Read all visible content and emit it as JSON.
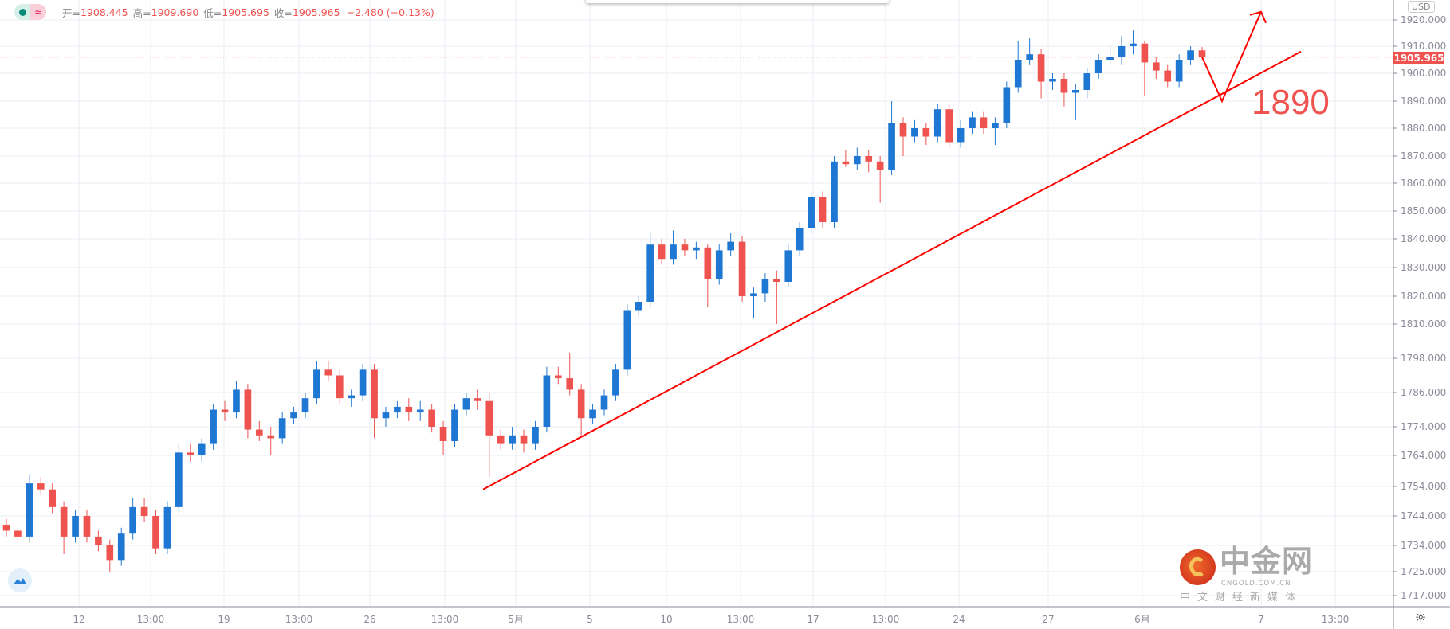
{
  "legend": {
    "open_label": "开=",
    "open": "1908.445",
    "high_label": "高=",
    "high": "1909.690",
    "low_label": "低=",
    "low": "1905.695",
    "close_label": "收=",
    "close": "1905.965",
    "change": "−2.480 (−0.13%)"
  },
  "currency": "USD",
  "last_price_label": "1905.965",
  "annotation": "1890",
  "watermark": {
    "name": "中金网",
    "domain": "CNGOLD.COM.CN",
    "tagline": "中文财经新媒体"
  },
  "colors": {
    "up": "#1f77d4",
    "down": "#ef5350",
    "annotation": "#ff0000",
    "grid": "#e8eef4"
  },
  "chart_data": {
    "type": "candlestick",
    "y_ticks": [
      "1920.000",
      "1910.000",
      "1900.000",
      "1890.000",
      "1880.000",
      "1870.000",
      "1860.000",
      "1850.000",
      "1840.000",
      "1830.000",
      "1820.000",
      "1810.000",
      "1798.000",
      "1786.000",
      "1774.000",
      "1764.000",
      "1754.000",
      "1744.000",
      "1734.000",
      "1725.000",
      "1717.000"
    ],
    "x_ticks": [
      "12",
      "13:00",
      "19",
      "13:00",
      "26",
      "13:00",
      "5月",
      "5",
      "10",
      "13:00",
      "17",
      "13:00",
      "24",
      "27",
      "6月",
      "7",
      "13:00"
    ],
    "last_price": 1905.965,
    "ohlc": [
      [
        1741,
        1743,
        1737,
        1739
      ],
      [
        1739,
        1741,
        1735,
        1737
      ],
      [
        1737,
        1758,
        1735,
        1755
      ],
      [
        1755,
        1757,
        1751,
        1753
      ],
      [
        1753,
        1755,
        1745,
        1747
      ],
      [
        1747,
        1749,
        1731,
        1737
      ],
      [
        1737,
        1746,
        1735,
        1744
      ],
      [
        1744,
        1746,
        1735,
        1737
      ],
      [
        1737,
        1739,
        1732,
        1734
      ],
      [
        1734,
        1736,
        1725,
        1729
      ],
      [
        1729,
        1740,
        1727,
        1738
      ],
      [
        1738,
        1750,
        1736,
        1747
      ],
      [
        1747,
        1750,
        1742,
        1744
      ],
      [
        1744,
        1746,
        1731,
        1733
      ],
      [
        1733,
        1749,
        1731,
        1747
      ],
      [
        1747,
        1768,
        1745,
        1765
      ],
      [
        1765,
        1768,
        1762,
        1764
      ],
      [
        1764,
        1770,
        1762,
        1768
      ],
      [
        1768,
        1782,
        1766,
        1780
      ],
      [
        1780,
        1783,
        1776,
        1779
      ],
      [
        1779,
        1790,
        1777,
        1787
      ],
      [
        1787,
        1789,
        1770,
        1773
      ],
      [
        1773,
        1776,
        1769,
        1771
      ],
      [
        1771,
        1774,
        1764,
        1770
      ],
      [
        1770,
        1779,
        1768,
        1777
      ],
      [
        1777,
        1781,
        1775,
        1779
      ],
      [
        1779,
        1786,
        1777,
        1784
      ],
      [
        1784,
        1797,
        1782,
        1794
      ],
      [
        1794,
        1797,
        1790,
        1792
      ],
      [
        1792,
        1794,
        1782,
        1784
      ],
      [
        1784,
        1787,
        1781,
        1785
      ],
      [
        1785,
        1796,
        1783,
        1794
      ],
      [
        1794,
        1796,
        1770,
        1777
      ],
      [
        1777,
        1781,
        1774,
        1779
      ],
      [
        1779,
        1783,
        1777,
        1781
      ],
      [
        1781,
        1784,
        1776,
        1779
      ],
      [
        1779,
        1783,
        1776,
        1780
      ],
      [
        1780,
        1782,
        1772,
        1774
      ],
      [
        1774,
        1776,
        1764,
        1769
      ],
      [
        1769,
        1782,
        1767,
        1780
      ],
      [
        1780,
        1786,
        1778,
        1784
      ],
      [
        1784,
        1787,
        1780,
        1783
      ],
      [
        1783,
        1786,
        1757,
        1771
      ],
      [
        1771,
        1773,
        1766,
        1768
      ],
      [
        1768,
        1774,
        1766,
        1771
      ],
      [
        1771,
        1773,
        1765,
        1768
      ],
      [
        1768,
        1776,
        1766,
        1774
      ],
      [
        1774,
        1795,
        1772,
        1792
      ],
      [
        1792,
        1795,
        1789,
        1791
      ],
      [
        1791,
        1800,
        1785,
        1787
      ],
      [
        1787,
        1789,
        1771,
        1777
      ],
      [
        1777,
        1782,
        1775,
        1780
      ],
      [
        1780,
        1787,
        1778,
        1785
      ],
      [
        1785,
        1796,
        1783,
        1794
      ],
      [
        1794,
        1817,
        1792,
        1815
      ],
      [
        1815,
        1820,
        1813,
        1818
      ],
      [
        1818,
        1842,
        1816,
        1838
      ],
      [
        1838,
        1840,
        1831,
        1833
      ],
      [
        1833,
        1843,
        1831,
        1838
      ],
      [
        1838,
        1840,
        1834,
        1836
      ],
      [
        1836,
        1839,
        1833,
        1837
      ],
      [
        1837,
        1838,
        1816,
        1826
      ],
      [
        1826,
        1838,
        1824,
        1836
      ],
      [
        1836,
        1842,
        1834,
        1839
      ],
      [
        1839,
        1841,
        1818,
        1820
      ],
      [
        1820,
        1823,
        1812,
        1821
      ],
      [
        1821,
        1828,
        1818,
        1826
      ],
      [
        1826,
        1829,
        1810,
        1825
      ],
      [
        1825,
        1838,
        1823,
        1836
      ],
      [
        1836,
        1846,
        1834,
        1844
      ],
      [
        1844,
        1857,
        1842,
        1855
      ],
      [
        1855,
        1857,
        1844,
        1846
      ],
      [
        1846,
        1870,
        1844,
        1868
      ],
      [
        1868,
        1872,
        1866,
        1867
      ],
      [
        1867,
        1873,
        1865,
        1870
      ],
      [
        1870,
        1872,
        1864,
        1868
      ],
      [
        1868,
        1870,
        1853,
        1865
      ],
      [
        1865,
        1890,
        1863,
        1882
      ],
      [
        1882,
        1884,
        1870,
        1877
      ],
      [
        1877,
        1883,
        1875,
        1880
      ],
      [
        1880,
        1882,
        1874,
        1877
      ],
      [
        1877,
        1889,
        1875,
        1887
      ],
      [
        1887,
        1889,
        1873,
        1875
      ],
      [
        1875,
        1883,
        1873,
        1880
      ],
      [
        1880,
        1886,
        1878,
        1884
      ],
      [
        1884,
        1886,
        1878,
        1880
      ],
      [
        1880,
        1884,
        1874,
        1882
      ],
      [
        1882,
        1897,
        1880,
        1895
      ],
      [
        1895,
        1912,
        1893,
        1905
      ],
      [
        1905,
        1913,
        1903,
        1907
      ],
      [
        1907,
        1909,
        1891,
        1897
      ],
      [
        1897,
        1900,
        1894,
        1898
      ],
      [
        1898,
        1900,
        1888,
        1893
      ],
      [
        1893,
        1896,
        1883,
        1894
      ],
      [
        1894,
        1902,
        1891,
        1900
      ],
      [
        1900,
        1907,
        1898,
        1905
      ],
      [
        1905,
        1910,
        1903,
        1906
      ],
      [
        1906,
        1914,
        1903,
        1910
      ],
      [
        1910,
        1916,
        1907,
        1911
      ],
      [
        1911,
        1912,
        1892,
        1904
      ],
      [
        1904,
        1906,
        1898,
        1901
      ],
      [
        1901,
        1903,
        1895,
        1897
      ],
      [
        1897,
        1907,
        1895,
        1905
      ],
      [
        1905,
        1910,
        1903,
        1908.445
      ],
      [
        1908.445,
        1909.69,
        1905.695,
        1905.965
      ]
    ],
    "trendline": {
      "from_price": 1753,
      "to_price": 1908
    },
    "projection": {
      "pullback_to": 1890,
      "target": 1923
    }
  }
}
